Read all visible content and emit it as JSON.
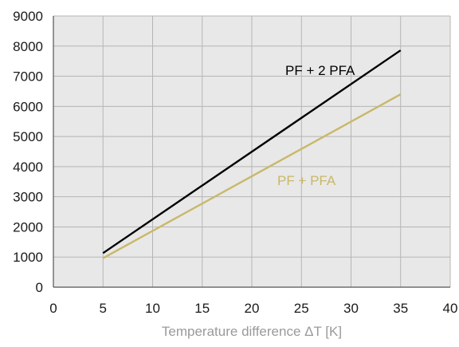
{
  "chart_data": {
    "type": "line",
    "title": "",
    "xlabel": "Temperature difference ΔT [K]",
    "ylabel": "",
    "xlim": [
      0,
      40
    ],
    "ylim": [
      0,
      9000
    ],
    "xticks": [
      0,
      5,
      10,
      15,
      20,
      25,
      30,
      35,
      40
    ],
    "yticks": [
      0,
      1000,
      2000,
      3000,
      4000,
      5000,
      6000,
      7000,
      8000,
      9000
    ],
    "grid": true,
    "legend": "inline labels",
    "background_color": "#e8e8e8",
    "grid_color": "#b5b5b5",
    "series": [
      {
        "name": "PF + 2 PFA",
        "color": "#000000",
        "x": [
          5,
          35
        ],
        "y": [
          1130,
          7860
        ]
      },
      {
        "name": "PF + PFA",
        "color": "#c8b86a",
        "x": [
          5,
          35
        ],
        "y": [
          960,
          6400
        ]
      }
    ]
  }
}
